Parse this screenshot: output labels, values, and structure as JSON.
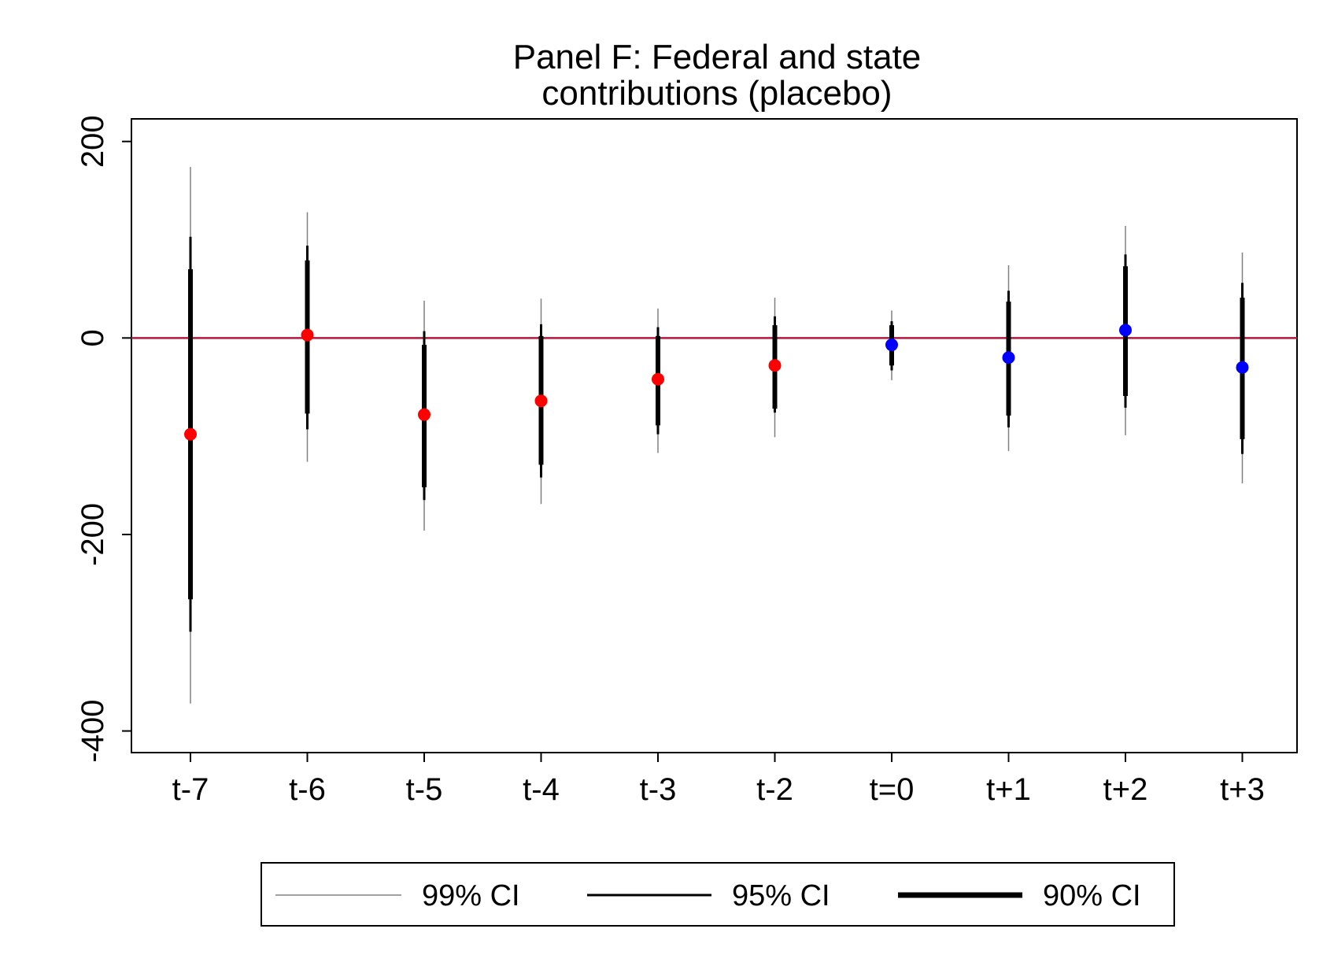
{
  "chart_data": {
    "type": "scatter",
    "title_lines": [
      "Panel F: Federal and state",
      "contributions (placebo)"
    ],
    "xlabel": "",
    "ylabel": "",
    "categories": [
      "t-7",
      "t-6",
      "t-5",
      "t-4",
      "t-3",
      "t-2",
      "t=0",
      "t+1",
      "t+2",
      "t+3"
    ],
    "ylim": [
      -422,
      223
    ],
    "yticks": [
      {
        "value": 200,
        "label": "200"
      },
      {
        "value": 0,
        "label": "0"
      },
      {
        "value": -200,
        "label": "-200"
      },
      {
        "value": -400,
        "label": "-400"
      }
    ],
    "reference_line": {
      "y": 0,
      "color": "#b2183b"
    },
    "estimates": [
      -98,
      3,
      -78,
      -64,
      -42,
      -28,
      -7,
      -20,
      8,
      -30
    ],
    "point_colors": [
      "#ff0000",
      "#ff0000",
      "#ff0000",
      "#ff0000",
      "#ff0000",
      "#ff0000",
      "#0000ff",
      "#0000ff",
      "#0000ff",
      "#0000ff"
    ],
    "ci99": [
      [
        -372,
        174
      ],
      [
        -126,
        128
      ],
      [
        -196,
        38
      ],
      [
        -169,
        40
      ],
      [
        -117,
        30
      ],
      [
        -101,
        41
      ],
      [
        -43,
        28
      ],
      [
        -115,
        74
      ],
      [
        -99,
        114
      ],
      [
        -148,
        87
      ]
    ],
    "ci95": [
      [
        -299,
        103
      ],
      [
        -93,
        94
      ],
      [
        -165,
        7
      ],
      [
        -142,
        14
      ],
      [
        -98,
        11
      ],
      [
        -76,
        22
      ],
      [
        -33,
        17
      ],
      [
        -91,
        48
      ],
      [
        -71,
        85
      ],
      [
        -118,
        56
      ]
    ],
    "ci90": [
      [
        -266,
        70
      ],
      [
        -77,
        79
      ],
      [
        -152,
        -7
      ],
      [
        -129,
        2
      ],
      [
        -89,
        2
      ],
      [
        -72,
        13
      ],
      [
        -28,
        13
      ],
      [
        -79,
        37
      ],
      [
        -59,
        73
      ],
      [
        -103,
        41
      ]
    ],
    "legend": {
      "position": "bottom",
      "entries": [
        {
          "label": "99% CI",
          "color": "#808080"
        },
        {
          "label": "95% CI",
          "color": "#000000"
        },
        {
          "label": "90% CI",
          "color": "#000000"
        }
      ]
    }
  }
}
